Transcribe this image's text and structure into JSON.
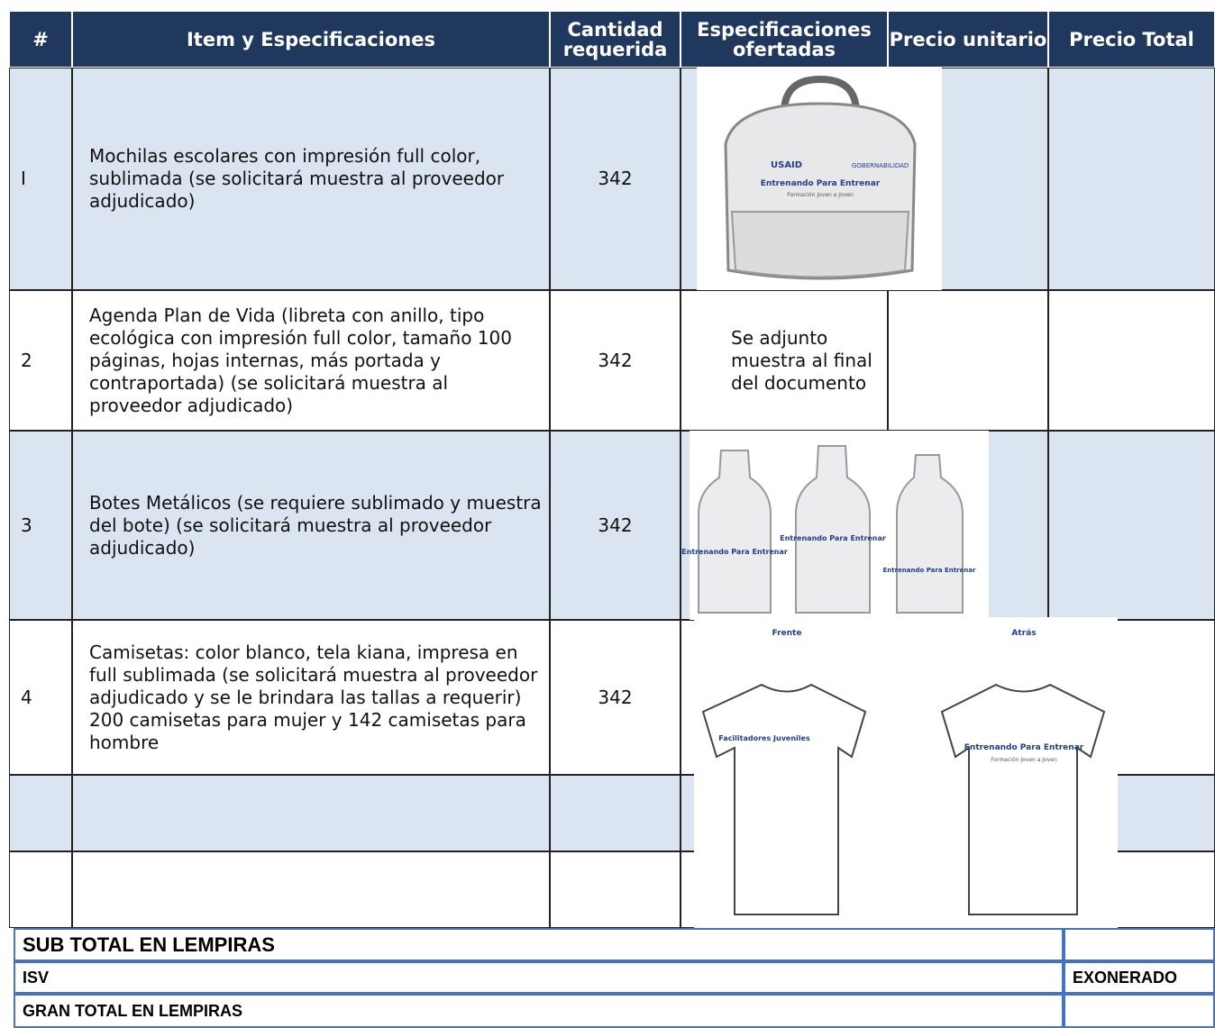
{
  "table": {
    "header": [
      "#",
      "Item y Especificaciones",
      "Cantidad requerida",
      "Especificaciones ofertadas",
      "Precio unitario",
      "Precio Total"
    ],
    "rows": [
      [
        "I",
        "Mochilas escolares con impresión full color, sublimada (se solicitará muestra al proveedor adjudicado)",
        "342"
      ],
      [
        "2",
        "Agenda Plan de Vida (libreta con anillo, tipo ecológica con impresión full color, tamaño 100 páginas, hojas internas, más portada y contraportada) (se solicitará muestra al proveedor adjudicado)",
        "342",
        "Se adjunto muestra al final del documento"
      ],
      [
        "3",
        "Botes Metálicos (se requiere sublimado y muestra del bote) (se solicitará muestra al proveedor adjudicado)",
        "342"
      ],
      [
        "4",
        "Camisetas: color blanco, tela kiana, impresa en full sublimada (se solicitará muestra al proveedor adjudicado y se le brindara las tallas a requerir) 200 camisetas para mujer y 142 camisetas para hombre",
        "342"
      ]
    ]
  },
  "images": {
    "usaid": "USAID",
    "gobernabilidad": "GOBERNABILIDAD",
    "brand": "Entrenando Para Entrenar",
    "tagline": "Formación Joven a Joven",
    "front": "Frente",
    "back": "Atrás",
    "front_text": "Facilitadores Juveniles"
  },
  "totals": [
    {
      "label": "SUB TOTAL EN LEMPIRAS"
    },
    {
      "label": "ISV",
      "value": "EXONERADO"
    },
    {
      "label": "GRAN TOTAL EN LEMPIRAS"
    }
  ]
}
